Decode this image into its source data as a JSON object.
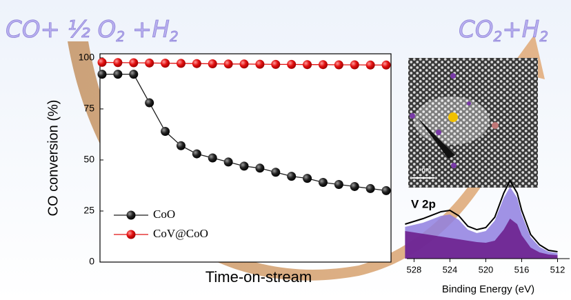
{
  "reaction": {
    "left": [
      "CO+ ½ O",
      "2",
      " +H",
      "2"
    ],
    "right": [
      "CO",
      "2",
      "+H",
      "2"
    ]
  },
  "image": {
    "scale_label": "1 nm"
  },
  "chart_data": [
    {
      "type": "line",
      "x_label": "Time-on-stream",
      "y_label": "CO conversion (%)",
      "categories": [
        null,
        null,
        null,
        null,
        null,
        null,
        null,
        null,
        null,
        null,
        null,
        null,
        null,
        null,
        null,
        null,
        null,
        null,
        null
      ],
      "ylim": [
        0,
        102
      ],
      "yticks": [
        0,
        25,
        50,
        75,
        100
      ],
      "legend": "lower left",
      "series": [
        {
          "name": "CoO",
          "color": "#1a1a1a",
          "values": [
            92,
            92,
            92,
            78,
            64,
            57,
            53,
            51,
            49,
            47,
            46,
            44,
            42,
            41,
            39,
            38,
            37,
            36,
            35
          ]
        },
        {
          "name": "CoV@CoO",
          "color": "#e01010",
          "values": [
            97.8,
            97.7,
            97.6,
            97.5,
            97.4,
            97.3,
            97.2,
            97.1,
            97.0,
            97.0,
            96.9,
            96.8,
            96.8,
            96.7,
            96.7,
            96.6,
            96.6,
            96.5,
            96.5
          ]
        }
      ]
    },
    {
      "type": "xps",
      "annotation": "V 2p",
      "x_label": "Binding Energy (eV)",
      "xlim": [
        528.8,
        511.5
      ],
      "xticks": [
        528,
        524,
        520,
        516,
        512
      ],
      "ylim": [
        0,
        120
      ],
      "x": [
        529,
        527,
        525,
        524,
        523,
        522,
        521,
        520,
        519,
        518,
        517.3,
        516.5,
        516,
        515,
        514,
        513,
        512
      ],
      "series": [
        {
          "color": "#8f7fe0",
          "values": [
            46,
            52,
            62,
            64,
            56,
            42,
            37,
            40,
            55,
            88,
            104,
            88,
            64,
            31,
            17,
            10,
            8
          ]
        },
        {
          "color": "#6a1a8a",
          "values": [
            40,
            36,
            32,
            30,
            28,
            26,
            24,
            23,
            26,
            42,
            58,
            50,
            34,
            16,
            9,
            6,
            5
          ]
        },
        {
          "color": "#000000",
          "values": [
            50,
            58,
            68,
            70,
            62,
            47,
            42,
            45,
            60,
            95,
            113,
            95,
            70,
            35,
            20,
            12,
            10
          ]
        }
      ]
    }
  ]
}
